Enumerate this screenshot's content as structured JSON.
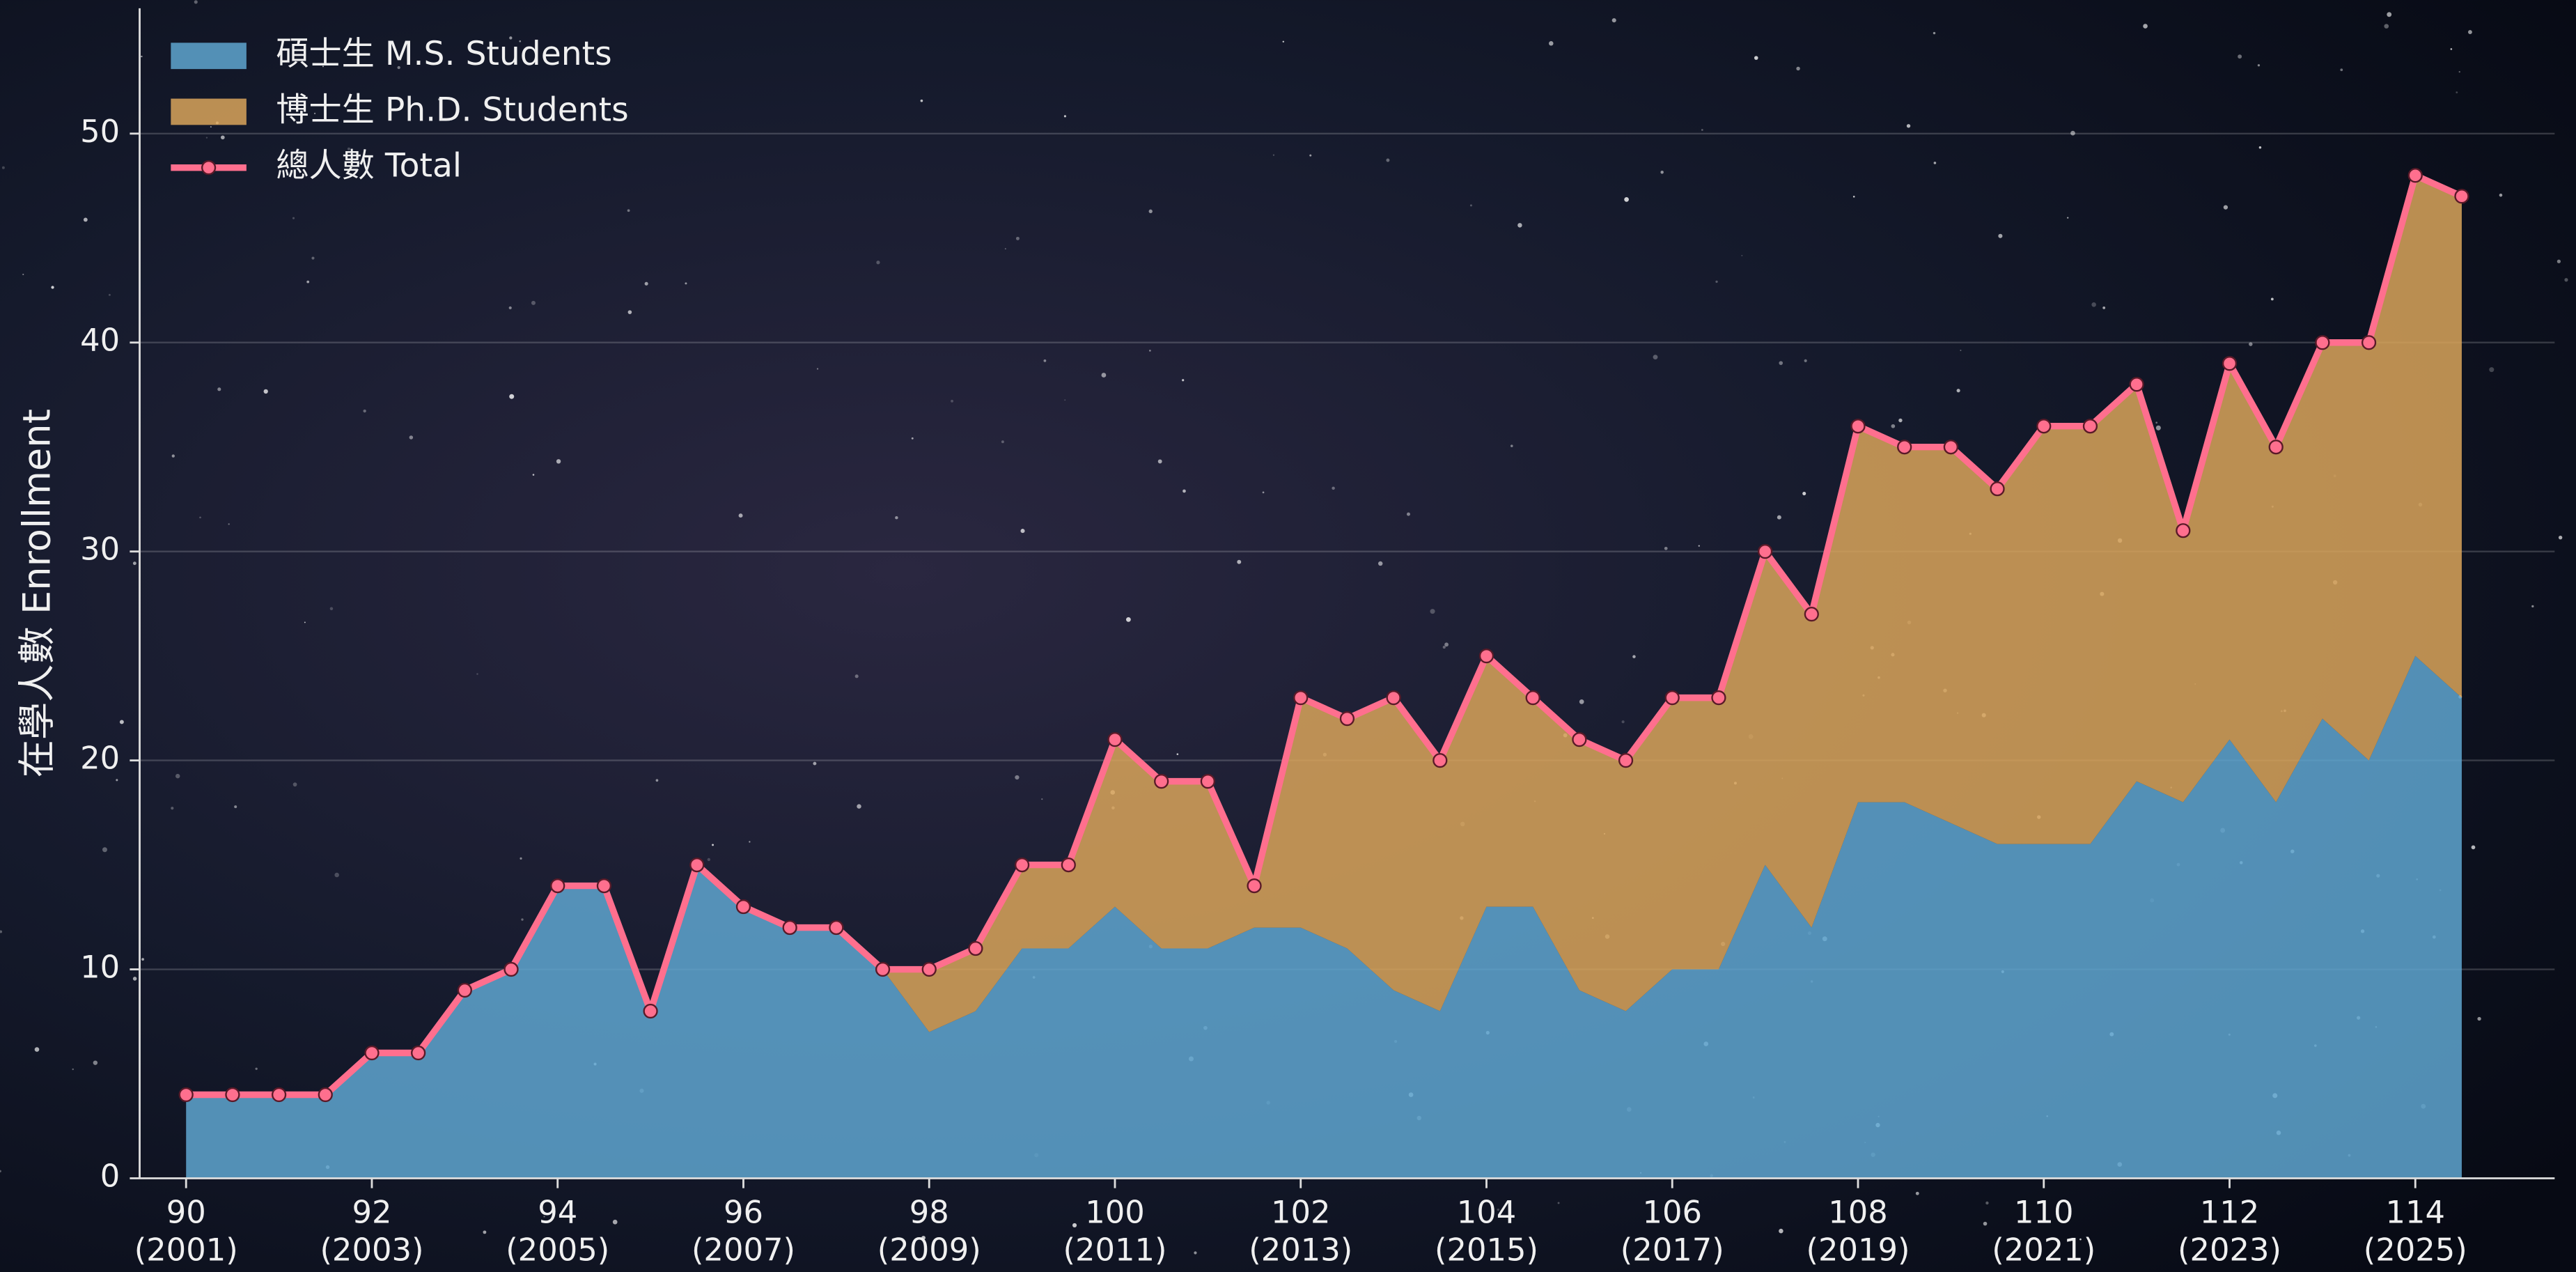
{
  "chart_data": {
    "type": "stacked_area",
    "y_label": "在學人數 Enrollment",
    "x": [
      90,
      90.5,
      91,
      91.5,
      92,
      92.5,
      93,
      93.5,
      94,
      94.5,
      95,
      95.5,
      96,
      96.5,
      97,
      97.5,
      98,
      98.5,
      99,
      99.5,
      100,
      100.5,
      101,
      101.5,
      102,
      102.5,
      103,
      103.5,
      104,
      104.5,
      105,
      105.5,
      106,
      106.5,
      107,
      107.5,
      108,
      108.5,
      109,
      109.5,
      110,
      110.5,
      111,
      111.5,
      112,
      112.5,
      113,
      113.5,
      114,
      114.5
    ],
    "series": [
      {
        "name": "碩士生 M.S. Students",
        "color": "#5fa6d0",
        "kind": "area",
        "values": [
          4,
          4,
          4,
          4,
          6,
          6,
          9,
          10,
          14,
          14,
          8,
          15,
          13,
          12,
          12,
          10,
          7,
          8,
          11,
          11,
          13,
          11,
          11,
          12,
          12,
          11,
          9,
          8,
          13,
          13,
          9,
          8,
          10,
          10,
          15,
          12,
          18,
          18,
          17,
          16,
          16,
          16,
          19,
          18,
          21,
          18,
          22,
          20,
          25,
          23
        ]
      },
      {
        "name": "博士生 Ph.D. Students",
        "color": "#d9a45a",
        "kind": "area",
        "values": [
          0,
          0,
          0,
          0,
          0,
          0,
          0,
          0,
          0,
          0,
          0,
          0,
          0,
          0,
          0,
          0,
          3,
          3,
          4,
          4,
          8,
          8,
          8,
          2,
          11,
          11,
          14,
          12,
          12,
          10,
          12,
          12,
          13,
          13,
          15,
          15,
          18,
          17,
          18,
          17,
          20,
          20,
          19,
          13,
          18,
          17,
          18,
          20,
          23,
          24
        ]
      },
      {
        "name": "總人數 Total",
        "color": "#ff6f8e",
        "kind": "line",
        "values": [
          4,
          4,
          4,
          4,
          6,
          6,
          9,
          10,
          14,
          14,
          8,
          15,
          13,
          12,
          12,
          10,
          10,
          11,
          15,
          15,
          21,
          19,
          19,
          14,
          23,
          22,
          23,
          20,
          25,
          23,
          21,
          20,
          23,
          23,
          30,
          27,
          36,
          35,
          35,
          33,
          36,
          36,
          38,
          31,
          39,
          35,
          40,
          40,
          48,
          47
        ]
      }
    ],
    "xlim": [
      89.5,
      115.5
    ],
    "ylim": [
      0,
      56
    ],
    "xticks": [
      90,
      92,
      94,
      96,
      98,
      100,
      102,
      104,
      106,
      108,
      110,
      112,
      114
    ],
    "xtick_years": [
      "(2001)",
      "(2003)",
      "(2005)",
      "(2007)",
      "(2009)",
      "(2011)",
      "(2013)",
      "(2015)",
      "(2017)",
      "(2019)",
      "(2021)",
      "(2023)",
      "(2025)"
    ],
    "yticks": [
      0,
      10,
      20,
      30,
      40,
      50
    ],
    "grid": true,
    "legend": "upper left"
  }
}
